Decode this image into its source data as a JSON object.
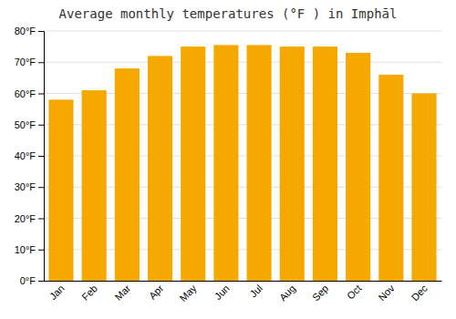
{
  "chart_data": {
    "type": "bar",
    "title": "Average monthly temperatures (°F ) in Imphāl",
    "categories": [
      "Jan",
      "Feb",
      "Mar",
      "Apr",
      "May",
      "Jun",
      "Jul",
      "Aug",
      "Sep",
      "Oct",
      "Nov",
      "Dec"
    ],
    "values": [
      58,
      61,
      68,
      72,
      75,
      75.5,
      75.5,
      75,
      75,
      73,
      66,
      60
    ],
    "color": "#F5A800",
    "ylim": [
      0,
      80
    ],
    "yticks": [
      {
        "value": 0,
        "label": "0°F"
      },
      {
        "value": 10,
        "label": "10°F"
      },
      {
        "value": 20,
        "label": "20°F"
      },
      {
        "value": 30,
        "label": "30°F"
      },
      {
        "value": 40,
        "label": "40°F"
      },
      {
        "value": 50,
        "label": "50°F"
      },
      {
        "value": 60,
        "label": "60°F"
      },
      {
        "value": 70,
        "label": "70°F"
      },
      {
        "value": 80,
        "label": "80°F"
      }
    ],
    "grid": true
  }
}
